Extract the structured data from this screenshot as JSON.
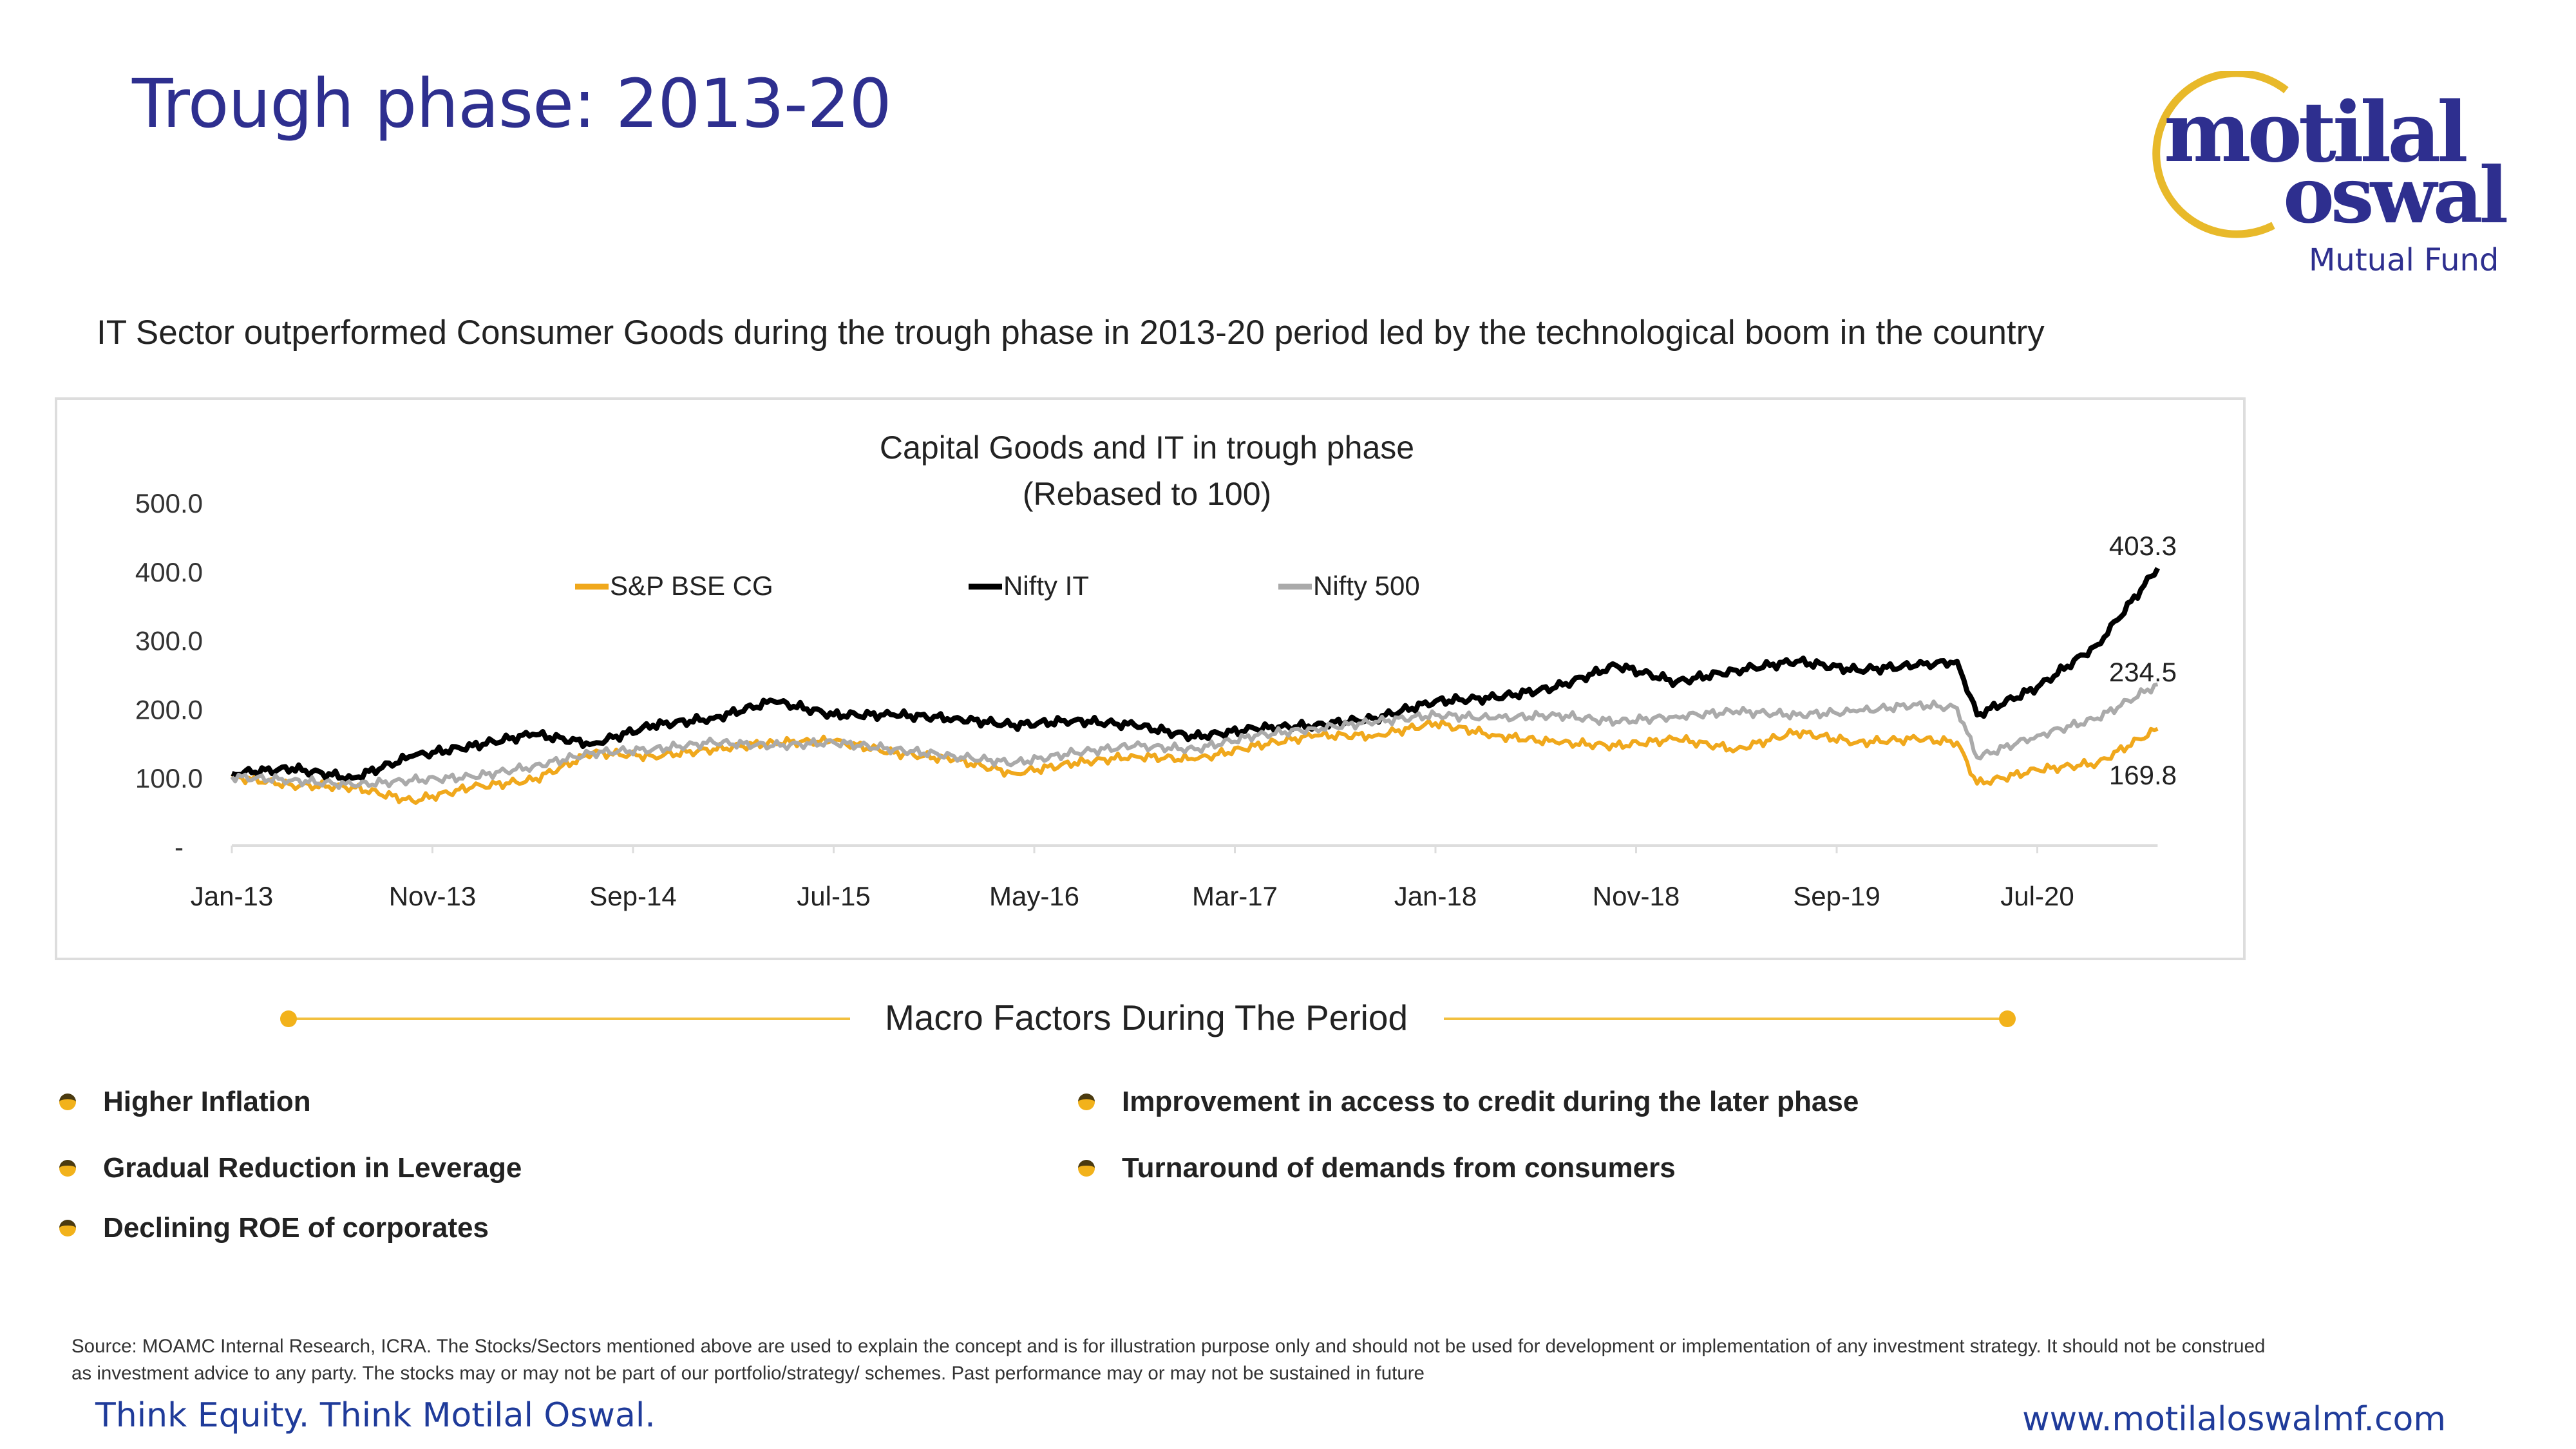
{
  "header": {
    "title": "Trough phase: 2013-20",
    "logo_text_1": "motilal",
    "logo_text_2": "oswal",
    "logo_sub": "Mutual Fund"
  },
  "subtitle": "IT Sector outperformed Consumer Goods during the trough phase in 2013-20 period led by the technological boom in the country",
  "chart_data": {
    "type": "line",
    "title": "Capital Goods and IT in trough phase",
    "subtitle": "(Rebased to 100)",
    "ylim": [
      0,
      500
    ],
    "yticks": [
      "-",
      "100.0",
      "200.0",
      "300.0",
      "400.0",
      "500.0"
    ],
    "xlabel_note": "x = months since Jan-13",
    "xticks": [
      {
        "m": 0,
        "label": "Jan-13"
      },
      {
        "m": 10,
        "label": "Nov-13"
      },
      {
        "m": 20,
        "label": "Sep-14"
      },
      {
        "m": 30,
        "label": "Jul-15"
      },
      {
        "m": 40,
        "label": "May-16"
      },
      {
        "m": 50,
        "label": "Mar-17"
      },
      {
        "m": 60,
        "label": "Jan-18"
      },
      {
        "m": 70,
        "label": "Nov-18"
      },
      {
        "m": 80,
        "label": "Sep-19"
      },
      {
        "m": 90,
        "label": "Jul-20"
      }
    ],
    "x": [
      0,
      3,
      6,
      9,
      12,
      15,
      18,
      21,
      24,
      27,
      30,
      33,
      36,
      39,
      42,
      45,
      48,
      51,
      54,
      57,
      60,
      63,
      66,
      69,
      72,
      75,
      78,
      81,
      84,
      86,
      87,
      90,
      93,
      96
    ],
    "legend_position": "top-center",
    "series": [
      {
        "name": "S&P BSE CG",
        "color": "#f0a81c",
        "end_label": "169.8",
        "values": [
          100,
          88,
          85,
          65,
          85,
          95,
          135,
          130,
          140,
          150,
          152,
          135,
          125,
          105,
          120,
          130,
          125,
          145,
          160,
          160,
          178,
          160,
          150,
          145,
          155,
          140,
          165,
          150,
          155,
          150,
          90,
          110,
          120,
          169.8
        ]
      },
      {
        "name": "Nifty IT",
        "color": "#000000",
        "end_label": "403.3",
        "values": [
          105,
          112,
          98,
          130,
          145,
          162,
          148,
          175,
          185,
          210,
          190,
          190,
          185,
          175,
          182,
          175,
          158,
          170,
          175,
          185,
          210,
          215,
          230,
          262,
          238,
          255,
          268,
          255,
          262,
          268,
          190,
          230,
          292,
          403.3
        ]
      },
      {
        "name": "Nifty 500",
        "color": "#aaaaaa",
        "end_label": "234.5",
        "values": [
          100,
          95,
          88,
          95,
          100,
          115,
          135,
          140,
          150,
          145,
          150,
          140,
          130,
          120,
          135,
          145,
          140,
          160,
          170,
          180,
          190,
          185,
          190,
          180,
          188,
          195,
          190,
          195,
          205,
          200,
          128,
          160,
          185,
          234.5
        ]
      }
    ]
  },
  "macro": {
    "heading": "Macro Factors During The Period",
    "left": [
      "Higher Inflation",
      "Gradual Reduction in Leverage",
      "Declining ROE of corporates"
    ],
    "right": [
      "Improvement in access to credit during the later phase",
      "Turnaround of demands from consumers"
    ]
  },
  "footer": {
    "source": "Source: MOAMC Internal Research, ICRA. The Stocks/Sectors mentioned above are used to explain the concept and is for illustration purpose only and should not be used for development or implementation of any investment strategy. It should not be construed as investment advice to any party. The stocks may or may not be part of our portfolio/strategy/ schemes. Past performance may or may not be sustained in future",
    "tagline": "Think Equity. Think Motilal Oswal.",
    "url": "www.motilaloswalmf.com"
  }
}
